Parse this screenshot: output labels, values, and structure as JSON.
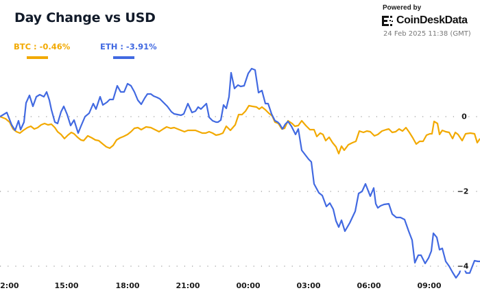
{
  "header": {
    "title": "Day Change vs USD",
    "powered_by": "Powered by",
    "brand": "CoinDeskData",
    "timestamp": "24 Feb 2025 11:38 (GMT)"
  },
  "legend": [
    {
      "label": "BTC : -0.46%",
      "color": "#f2a900"
    },
    {
      "label": "ETH : -3.91%",
      "color": "#4169e1"
    }
  ],
  "axes": {
    "x_ticks": [
      "12:00",
      "15:00",
      "18:00",
      "21:00",
      "00:00",
      "03:00",
      "06:00",
      "09:00"
    ],
    "y_ticks": [
      "0",
      "−2",
      "−4"
    ]
  },
  "chart_data": {
    "type": "line",
    "title": "Day Change vs USD",
    "xlabel": "",
    "ylabel": "",
    "ylim": [
      -4.3,
      1.5
    ],
    "grid": "horizontal dotted at 0, -2, -4",
    "legend_position": "top-left",
    "x": [
      "11:45",
      "12:00",
      "13:00",
      "14:00",
      "15:00",
      "16:00",
      "17:00",
      "18:00",
      "19:00",
      "20:00",
      "21:00",
      "22:00",
      "23:00",
      "00:00",
      "01:00",
      "02:00",
      "03:00",
      "04:00",
      "05:00",
      "06:00",
      "07:00",
      "08:00",
      "09:00",
      "10:00",
      "11:00",
      "11:38"
    ],
    "series": [
      {
        "name": "BTC",
        "color": "#f2a900",
        "final_change_pct": -0.46,
        "values": [
          0.0,
          -0.05,
          -0.3,
          -0.2,
          -0.55,
          -0.65,
          -0.75,
          -0.5,
          -0.35,
          -0.3,
          -0.35,
          -0.4,
          -0.4,
          0.25,
          0.15,
          -0.1,
          -0.15,
          -0.35,
          -0.55,
          -0.4,
          -0.35,
          -0.4,
          -0.5,
          -0.3,
          -0.5,
          -0.46
        ]
      },
      {
        "name": "ETH",
        "color": "#4169e1",
        "final_change_pct": -3.91,
        "values": [
          0.0,
          0.1,
          0.55,
          -0.05,
          -0.3,
          0.4,
          0.3,
          0.8,
          0.45,
          0.3,
          0.1,
          0.25,
          -0.1,
          1.15,
          0.7,
          -0.2,
          -0.6,
          -2.05,
          -3.15,
          -1.8,
          -2.35,
          -2.7,
          -3.8,
          -3.3,
          -4.25,
          -3.91
        ]
      }
    ]
  },
  "series_paths": {
    "eth": "0,170 10,164 17,182 22,190 27,176 30,189 35,178 38,150 43,139 48,155 53,141 58,138 64,141 68,134 72,146 75,160 80,178 84,180 89,163 93,155 98,167 103,183 108,175 114,194 118,184 124,170 130,165 136,151 140,159 146,141 150,153 156,149 160,145 165,145 171,125 176,134 181,134 186,122 191,125 196,134 201,146 206,152 211,143 215,137 220,137 224,140 229,142 233,144 238,149 244,155 250,163 254,166 259,167 264,168 268,166 274,151 280,164 285,162 289,156 293,159 297,155 301,151 305,171 310,176 315,178 318,178 322,175 326,153 330,158 334,141 337,106 342,129 347,124 351,126 356,125 362,107 367,100 372,102 377,135 382,132 387,151 391,151 396,166 401,176 405,178 408,181 412,188 416,181 420,177 425,184 431,196 435,188 440,219 450,232 454,236 458,268 465,281 470,285 476,301 481,296 486,305 490,322 494,331 498,321 503,337 510,325 518,308 523,282 528,279 533,268 540,286 545,274 548,297 551,303 555,300 560,298 567,297 572,312 578,317 584,317 590,320 596,337 601,350 605,383 610,372 614,372 620,384 625,376 629,366 632,340 637,346 641,364 645,362 650,381 655,388 660,397 665,405 670,398 674,386 680,398 685,398 692,380 697,381 700,381",
    "btc": "0,170 8,173 14,178 19,188 24,192 29,194 34,190 40,186 45,184 50,188 55,186 60,182 65,180 70,182 75,181 80,186 84,192 89,196 94,202 99,197 104,193 108,195 113,200 118,204 122,205 128,198 134,201 139,204 144,205 150,210 155,214 160,216 165,212 170,204 175,201 180,199 186,196 191,192 196,187 201,186 206,189 213,185 220,186 226,189 232,192 238,188 243,185 249,187 254,186 259,188 264,190 269,192 274,190 280,190 285,190 290,192 295,194 300,194 305,192 310,194 315,197 320,196 325,194 330,184 336,190 343,182 348,167 353,167 358,162 363,154 368,155 374,156 378,159 382,156 387,160 392,165 397,169 401,178 406,180 411,188 415,187 420,176 426,180 430,184 435,183 440,176 446,183 452,189 458,189 462,199 467,194 471,196 475,205 480,200 485,208 490,214 494,224 498,213 502,219 508,211 514,208 519,206 524,191 530,193 535,191 540,192 546,198 551,196 557,191 563,189 567,188 572,193 577,192 582,188 587,191 592,186 597,193 602,201 607,210 612,206 617,206 622,197 627,195 630,195 633,177 638,180 641,196 645,190 650,192 655,193 660,202 664,193 668,196 674,205 679,195 686,194 692,195 696,208 700,202"
  }
}
